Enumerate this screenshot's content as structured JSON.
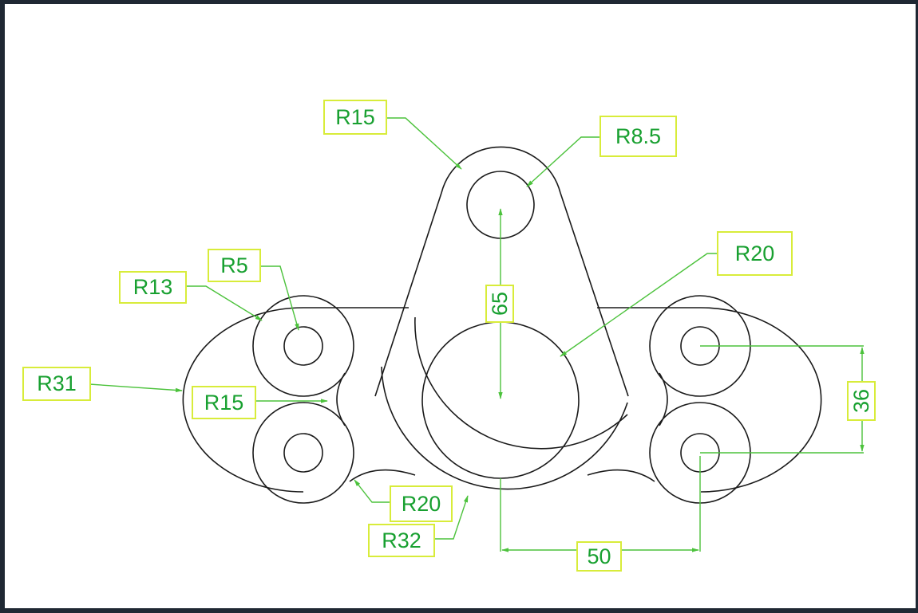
{
  "drawing": {
    "labels": {
      "r15_top": "R15",
      "r8_5": "R8.5",
      "r20_right": "R20",
      "r5": "R5",
      "r13": "R13",
      "r31": "R31",
      "r15_left": "R15",
      "r20_bottom": "R20",
      "r32": "R32",
      "dim_65": "65",
      "dim_36": "36",
      "dim_50": "50"
    },
    "colors": {
      "outline": "#1a1a1a",
      "dimension": "#4cc23c",
      "label_text": "#18a030",
      "label_border": "#d8ec3a",
      "frame": "#1f2833",
      "paper": "#ffffff"
    }
  }
}
